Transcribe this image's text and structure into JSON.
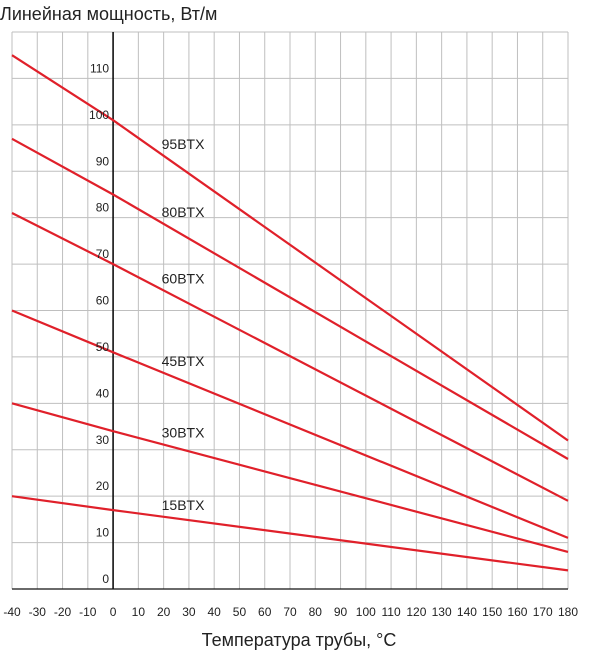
{
  "chart_data": {
    "type": "line",
    "ylabel": "Линейная мощность, Вт/м",
    "xlabel": "Температура трубы, °C",
    "xlim": [
      -40,
      180
    ],
    "ylim": [
      0,
      120
    ],
    "x_ticks": [
      -40,
      -30,
      -20,
      -10,
      0,
      10,
      20,
      30,
      40,
      50,
      60,
      70,
      80,
      90,
      100,
      110,
      120,
      130,
      140,
      150,
      160,
      170,
      180
    ],
    "y_ticks": [
      0,
      10,
      20,
      30,
      40,
      50,
      60,
      70,
      80,
      90,
      100,
      110
    ],
    "grid": true,
    "line_color": "#e0202a",
    "series": [
      {
        "name": "95BTX",
        "label_at": 20,
        "points": [
          [
            -40,
            115
          ],
          [
            0,
            101
          ],
          [
            180,
            32
          ]
        ]
      },
      {
        "name": "80BTX",
        "label_at": 20,
        "points": [
          [
            -40,
            97
          ],
          [
            0,
            85
          ],
          [
            180,
            28
          ]
        ]
      },
      {
        "name": "60BTX",
        "label_at": 20,
        "points": [
          [
            -40,
            81
          ],
          [
            0,
            70
          ],
          [
            180,
            19
          ]
        ]
      },
      {
        "name": "45BTX",
        "label_at": 20,
        "points": [
          [
            -40,
            60
          ],
          [
            0,
            51
          ],
          [
            180,
            11
          ]
        ]
      },
      {
        "name": "30BTX",
        "label_at": 20,
        "points": [
          [
            -40,
            40
          ],
          [
            0,
            34
          ],
          [
            180,
            8
          ]
        ]
      },
      {
        "name": "15BTX",
        "label_at": 20,
        "points": [
          [
            -40,
            20
          ],
          [
            0,
            17
          ],
          [
            180,
            4
          ]
        ]
      }
    ]
  }
}
